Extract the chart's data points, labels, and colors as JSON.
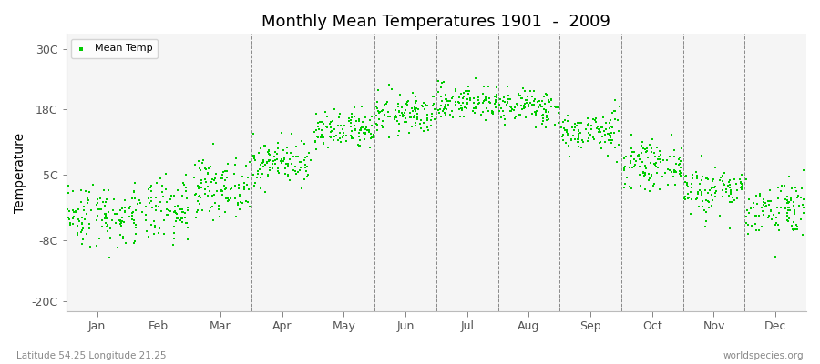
{
  "title": "Monthly Mean Temperatures 1901  -  2009",
  "ylabel": "Temperature",
  "subtitle_left": "Latitude 54.25 Longitude 21.25",
  "subtitle_right": "worldspecies.org",
  "legend_label": "Mean Temp",
  "dot_color": "#00cc00",
  "background_color": "#ffffff",
  "plot_bg_color": "#f5f5f5",
  "yticks": [
    -20,
    -8,
    5,
    18,
    30
  ],
  "ytick_labels": [
    "-20C",
    "-8C",
    "5C",
    "18C",
    "30C"
  ],
  "ylim": [
    -22,
    33
  ],
  "months": [
    "Jan",
    "Feb",
    "Mar",
    "Apr",
    "May",
    "Jun",
    "Jul",
    "Aug",
    "Sep",
    "Oct",
    "Nov",
    "Dec"
  ],
  "n_years": 109,
  "seed": 42,
  "monthly_means": [
    -3.0,
    -2.5,
    2.5,
    7.5,
    13.5,
    17.0,
    19.5,
    18.5,
    13.5,
    7.0,
    2.0,
    -1.5
  ],
  "monthly_stds": [
    3.2,
    3.2,
    2.8,
    2.2,
    2.0,
    2.0,
    1.8,
    1.8,
    2.0,
    2.2,
    2.5,
    2.8
  ]
}
